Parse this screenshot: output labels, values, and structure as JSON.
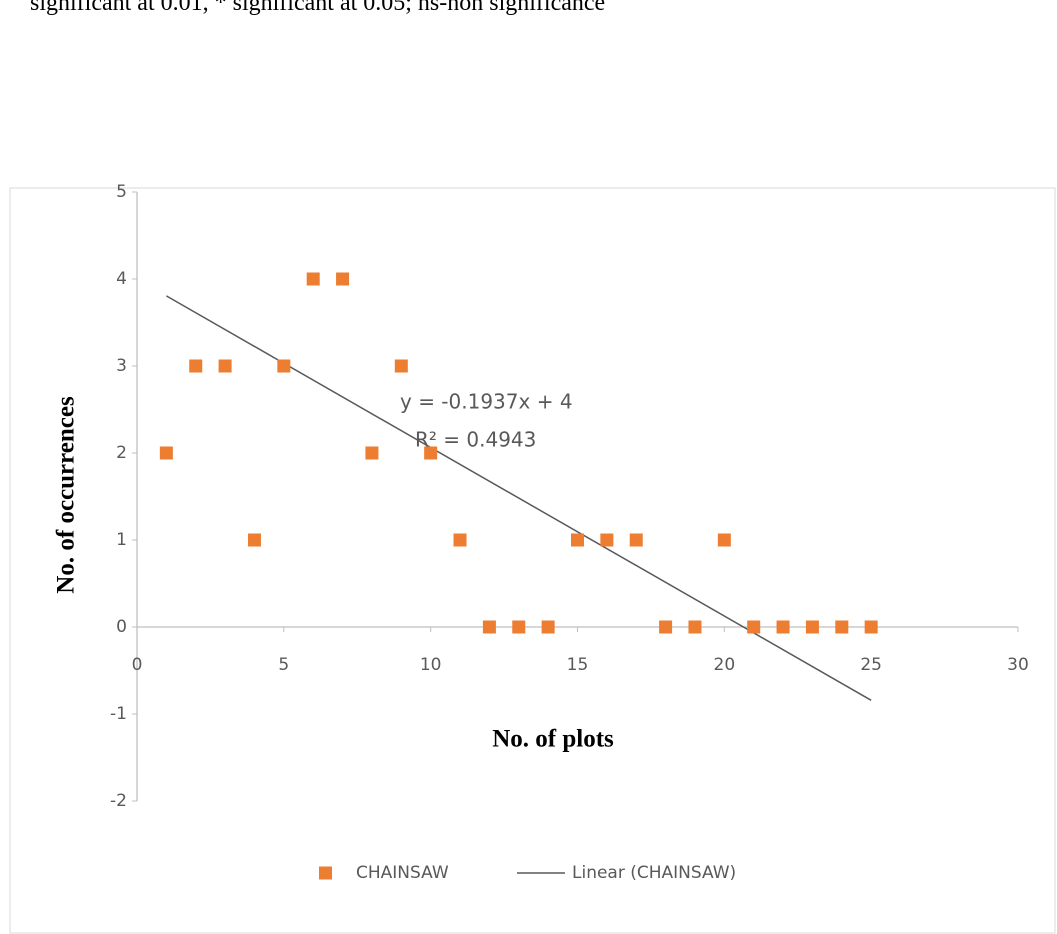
{
  "note": "significant at 0.01, * significant at 0.05; ns-non significance",
  "chart_data": {
    "type": "scatter",
    "xlabel": "No. of plots",
    "ylabel": "No. of occurrences",
    "x": [
      1,
      2,
      3,
      4,
      5,
      6,
      7,
      8,
      9,
      10,
      11,
      12,
      13,
      14,
      15,
      16,
      17,
      18,
      19,
      20,
      21,
      22,
      23,
      24,
      25
    ],
    "series": [
      {
        "name": "CHAINSAW",
        "color": "#ed7d31",
        "values": [
          2,
          3,
          3,
          1,
          3,
          4,
          4,
          2,
          3,
          2,
          1,
          0,
          0,
          0,
          1,
          1,
          1,
          0,
          0,
          1,
          0,
          0,
          0,
          0,
          0
        ]
      }
    ],
    "trendline": {
      "name": "Linear (CHAINSAW)",
      "color": "#595959",
      "slope": -0.1937,
      "intercept": 4,
      "equation": "y = -0.1937x + 4",
      "r_squared": "R² = 0.4943"
    },
    "xlim": [
      0,
      30
    ],
    "xticks": [
      0,
      5,
      10,
      15,
      20,
      25,
      30
    ],
    "ylim": [
      -2,
      5
    ],
    "yticks": [
      -2,
      -1,
      0,
      1,
      2,
      3,
      4,
      5
    ],
    "legend": "bottom"
  }
}
